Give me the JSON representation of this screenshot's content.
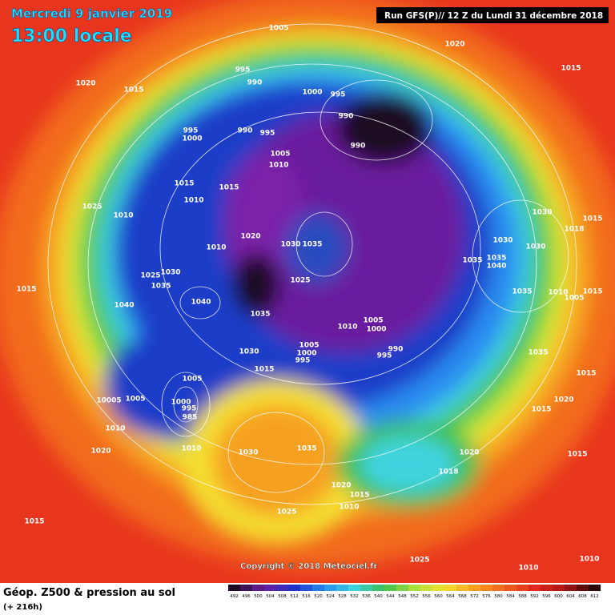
{
  "header": {
    "date": "Mercredi 9 janvier 2019",
    "time": "13:00 locale",
    "run": "Run GFS(P)// 12 Z du Lundi 31 décembre 2018"
  },
  "copyright": "Copyright © 2018 Météociel.fr",
  "footer": {
    "title": "Géop. Z500 & pression au sol",
    "lead": "(+ 216h)"
  },
  "scale": [
    "492",
    "496",
    "500",
    "504",
    "508",
    "512",
    "516",
    "520",
    "524",
    "528",
    "532",
    "536",
    "540",
    "544",
    "548",
    "552",
    "556",
    "560",
    "564",
    "568",
    "572",
    "576",
    "580",
    "584",
    "588",
    "592",
    "596",
    "600",
    "604",
    "608",
    "612"
  ],
  "map_labels": [
    "1005",
    "1020",
    "1015",
    "1020",
    "1015",
    "995",
    "990",
    "1000",
    "995",
    "990",
    "995",
    "1000",
    "990",
    "995",
    "990",
    "1005",
    "1010",
    "1015",
    "1010",
    "1015",
    "1025",
    "1010",
    "1030",
    "1015",
    "1018",
    "1020",
    "1030",
    "1035",
    "1030",
    "1030",
    "1010",
    "1035",
    "1035",
    "1040",
    "1025",
    "1030",
    "1035",
    "1025",
    "1015",
    "1035",
    "1010",
    "1005",
    "1015",
    "1040",
    "1040",
    "1035",
    "1010",
    "1005",
    "1000",
    "990",
    "995",
    "1005",
    "1000",
    "1030",
    "995",
    "1035",
    "1015",
    "1015",
    "1005",
    "10005",
    "1005",
    "1000",
    "995",
    "985",
    "1020",
    "1015",
    "1010",
    "1010",
    "1020",
    "1030",
    "1035",
    "1020",
    "1015",
    "1018",
    "1020",
    "1015",
    "1010",
    "1025",
    "1015",
    "1010",
    "1025",
    "1010"
  ]
}
